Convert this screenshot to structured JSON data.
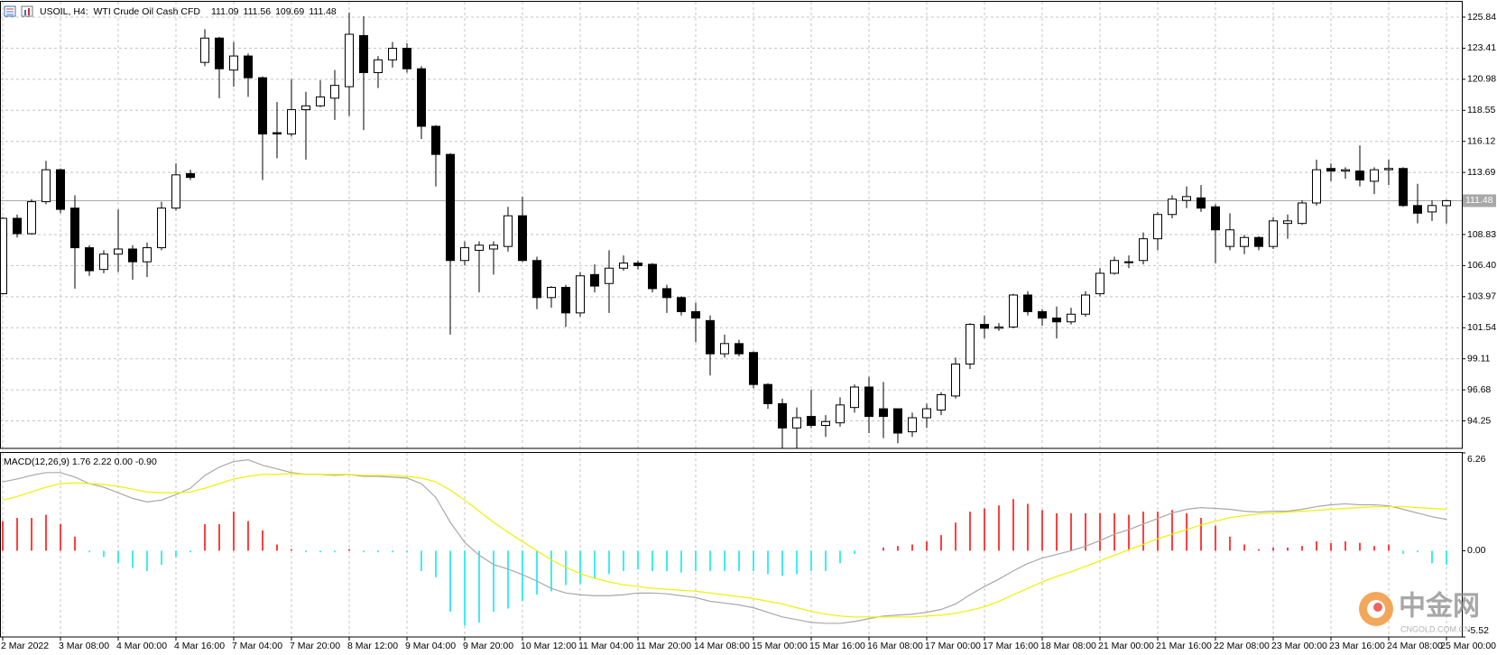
{
  "chart_data": [
    {
      "type": "candlestick",
      "title": "USOIL, H4:  WTI Crude Oil Cash CFD",
      "categories": [
        "2 Mar 2022",
        null,
        null,
        null,
        "3 Mar 08:00",
        null,
        null,
        null,
        "4 Mar 00:00",
        null,
        null,
        null,
        "4 Mar 16:00",
        null,
        null,
        null,
        "7 Mar 04:00",
        null,
        null,
        null,
        "7 Mar 20:00",
        null,
        null,
        null,
        "8 Mar 12:00",
        null,
        null,
        null,
        "9 Mar 04:00",
        null,
        null,
        null,
        "9 Mar 20:00",
        null,
        null,
        null,
        "10 Mar 12:00",
        null,
        null,
        null,
        "11 Mar 04:00",
        null,
        null,
        null,
        "11 Mar 20:00",
        null,
        null,
        null,
        "14 Mar 08:00",
        null,
        null,
        null,
        "15 Mar 00:00",
        null,
        null,
        null,
        "15 Mar 16:00",
        null,
        null,
        null,
        "16 Mar 08:00",
        null,
        null,
        null,
        "17 Mar 00:00",
        null,
        null,
        null,
        "17 Mar 16:00",
        null,
        null,
        null,
        "18 Mar 08:00",
        null,
        null,
        null,
        "21 Mar 00:00",
        null,
        null,
        null,
        "21 Mar 16:00",
        null,
        null,
        null,
        "22 Mar 08:00",
        null,
        null,
        null,
        "23 Mar 00:00",
        null,
        null,
        null,
        "23 Mar 16:00",
        null,
        null,
        null,
        "24 Mar 08:00",
        null,
        null,
        null,
        "25 Mar 00:00"
      ],
      "open": [
        104.2,
        110.1,
        108.9,
        111.4,
        113.9,
        110.9,
        107.8,
        106.1,
        107.3,
        107.7,
        106.7,
        107.8,
        110.9,
        113.6,
        122.3,
        124.2,
        121.7,
        122.8,
        121.1,
        116.8,
        116.7,
        118.6,
        118.9,
        119.5,
        120.4,
        124.4,
        121.5,
        122.5,
        123.4,
        121.8,
        117.3,
        115.1,
        106.8,
        107.6,
        107.7,
        107.9,
        110.3,
        106.8,
        103.9,
        104.7,
        102.7,
        105.7,
        105.0,
        106.2,
        106.6,
        106.5,
        104.6,
        103.9,
        102.8,
        102.1,
        99.5,
        100.3,
        99.6,
        97.1,
        95.6,
        93.7,
        94.6,
        93.9,
        94.1,
        95.3,
        96.9,
        95.2,
        95.2,
        93.4,
        94.5,
        95.1,
        96.2,
        98.7,
        101.8,
        101.5,
        101.6,
        104.1,
        102.8,
        102.3,
        102.0,
        102.6,
        104.2,
        105.8,
        106.7,
        106.8,
        108.5,
        110.4,
        111.5,
        111.7,
        111.0,
        107.9,
        107.9,
        108.6,
        107.9,
        109.7,
        109.7,
        111.3,
        114.0,
        113.8,
        113.8,
        113.0,
        113.9,
        114.0,
        111.1,
        110.6,
        111.09
      ],
      "high": [
        110.2,
        110.4,
        111.6,
        114.6,
        114.0,
        111.9,
        108.0,
        107.6,
        110.8,
        108.0,
        108.2,
        111.4,
        114.4,
        113.9,
        124.9,
        124.3,
        123.9,
        123.0,
        121.2,
        119.2,
        121.0,
        120.0,
        120.9,
        121.7,
        126.2,
        125.9,
        122.8,
        123.9,
        123.8,
        122.0,
        117.4,
        115.2,
        108.3,
        108.3,
        108.3,
        111.0,
        111.8,
        107.1,
        104.8,
        104.9,
        105.9,
        106.5,
        107.6,
        107.2,
        106.8,
        106.6,
        104.9,
        104.0,
        103.5,
        102.5,
        101.0,
        100.6,
        99.7,
        97.2,
        96.0,
        95.3,
        96.7,
        94.7,
        96.1,
        97.1,
        97.7,
        97.3,
        95.2,
        94.9,
        95.6,
        96.5,
        99.2,
        101.9,
        102.5,
        101.9,
        104.2,
        104.4,
        103.0,
        103.2,
        103.1,
        104.4,
        106.2,
        107.1,
        107.2,
        109.0,
        110.6,
        111.9,
        112.6,
        112.7,
        111.2,
        110.5,
        108.8,
        108.7,
        110.2,
        110.4,
        111.5,
        114.7,
        114.4,
        114.1,
        115.8,
        114.1,
        114.7,
        114.1,
        112.8,
        111.5,
        111.56
      ],
      "low": [
        104.2,
        108.6,
        108.8,
        111.2,
        110.5,
        104.6,
        105.6,
        105.8,
        105.9,
        105.3,
        105.5,
        107.6,
        110.7,
        113.1,
        122.0,
        119.5,
        120.4,
        119.6,
        113.1,
        114.8,
        116.5,
        114.7,
        118.8,
        117.8,
        118.1,
        117.0,
        120.3,
        121.9,
        121.5,
        116.3,
        112.6,
        101.0,
        106.4,
        104.3,
        105.7,
        107.5,
        106.7,
        103.0,
        103.1,
        101.6,
        102.4,
        104.3,
        102.7,
        106.0,
        106.1,
        104.3,
        102.7,
        102.5,
        100.4,
        97.8,
        99.2,
        99.3,
        96.8,
        95.2,
        92.1,
        92.1,
        93.7,
        93.0,
        93.8,
        94.9,
        93.3,
        92.9,
        92.5,
        93.0,
        93.7,
        94.7,
        96.0,
        98.3,
        100.7,
        101.3,
        101.5,
        102.5,
        101.7,
        100.7,
        101.8,
        102.4,
        104.0,
        105.7,
        106.2,
        106.5,
        107.6,
        110.1,
        110.9,
        110.6,
        106.6,
        107.6,
        107.3,
        107.6,
        107.7,
        108.5,
        109.6,
        111.1,
        113.0,
        113.2,
        112.6,
        112.0,
        112.7,
        111.0,
        109.7,
        109.9,
        109.69
      ],
      "close": [
        110.1,
        108.9,
        111.4,
        113.9,
        110.8,
        107.8,
        106.0,
        107.3,
        107.7,
        106.7,
        107.8,
        110.9,
        113.5,
        113.3,
        124.2,
        121.8,
        122.8,
        121.1,
        116.7,
        116.7,
        118.6,
        118.9,
        119.6,
        120.5,
        124.5,
        121.5,
        122.5,
        123.4,
        121.8,
        117.3,
        115.1,
        106.8,
        107.8,
        108.0,
        108.0,
        110.3,
        106.8,
        103.9,
        104.7,
        102.7,
        105.6,
        104.8,
        106.2,
        106.6,
        106.4,
        104.6,
        103.9,
        102.8,
        102.3,
        99.5,
        100.3,
        99.5,
        97.1,
        95.6,
        93.7,
        94.5,
        93.9,
        94.2,
        95.5,
        96.9,
        94.6,
        94.6,
        93.3,
        94.5,
        95.2,
        96.3,
        98.7,
        101.8,
        101.5,
        101.6,
        104.1,
        102.8,
        102.3,
        102.0,
        102.6,
        104.1,
        105.8,
        106.8,
        106.7,
        108.5,
        110.4,
        111.6,
        111.8,
        110.9,
        109.2,
        109.2,
        108.6,
        107.9,
        109.9,
        109.9,
        111.3,
        113.9,
        113.8,
        113.9,
        113.1,
        113.9,
        114.0,
        111.1,
        110.5,
        111.1,
        111.48
      ],
      "up_color": "#ffffff",
      "down_color": "#000000",
      "outline_color": "#000000",
      "last_price": 111.48,
      "last_price_color": "#a8a8a8",
      "ylim": [
        92.1,
        127.04
      ],
      "yticks": [
        125.84,
        123.41,
        120.98,
        118.55,
        116.12,
        113.69,
        108.83,
        {
          "value": 106.4,
          "label": "106.40"
        },
        103.97,
        101.54,
        99.11,
        96.68,
        94.25
      ],
      "grid": true
    },
    {
      "type": "macd",
      "title": "MACD(12,26,9) 1.76 2.22 0.00 -0.90",
      "histogram": {
        "up_color": "#ff0000",
        "down_color": "#00e5ee",
        "values": [
          1.9,
          2.1,
          2.1,
          2.3,
          1.7,
          0.9,
          -0.1,
          -0.4,
          -0.8,
          -1.1,
          -1.3,
          -0.9,
          -0.4,
          -0.1,
          1.7,
          1.7,
          2.5,
          1.9,
          1.3,
          0.4,
          0.1,
          -0.1,
          -0.1,
          -0.1,
          0.1,
          -0.1,
          -0.1,
          -0.1,
          -0.1,
          -1.3,
          -1.7,
          -3.9,
          -4.8,
          -4.6,
          -3.9,
          -3.7,
          -3.2,
          -2.8,
          -2.6,
          -2.2,
          -2.1,
          -1.8,
          -1.5,
          -1.3,
          -1.2,
          -1.3,
          -1.3,
          -1.4,
          -1.3,
          -1.3,
          -1.3,
          -1.3,
          -1.3,
          -1.5,
          -1.6,
          -1.5,
          -1.3,
          -1.3,
          -0.8,
          -0.2,
          0,
          0.2,
          0.3,
          0.4,
          0.6,
          1.0,
          1.8,
          2.5,
          2.7,
          2.9,
          3.3,
          3.0,
          2.6,
          2.4,
          2.4,
          2.4,
          2.4,
          2.4,
          2.3,
          2.5,
          2.5,
          2.6,
          2.4,
          2.1,
          1.6,
          0.9,
          0.4,
          0.1,
          0.2,
          0.2,
          0.3,
          0.6,
          0.5,
          0.6,
          0.5,
          0.3,
          0.4,
          -0.2,
          -0.1,
          -0.8,
          -0.9
        ]
      },
      "series": [
        {
          "color": "#a8a8a8",
          "values": [
            4.41,
            4.59,
            4.82,
            5.0,
            5.0,
            4.71,
            4.29,
            4.06,
            3.71,
            3.35,
            3.12,
            3.24,
            3.59,
            4.0,
            4.82,
            5.35,
            5.71,
            5.82,
            5.47,
            5.24,
            5.0,
            4.88,
            4.88,
            4.82,
            4.88,
            4.76,
            4.76,
            4.71,
            4.65,
            4.29,
            3.41,
            1.82,
            0.53,
            -0.29,
            -0.88,
            -1.18,
            -1.53,
            -1.94,
            -2.41,
            -2.71,
            -2.82,
            -2.88,
            -2.88,
            -2.82,
            -2.71,
            -2.71,
            -2.76,
            -2.88,
            -3.0,
            -3.24,
            -3.35,
            -3.47,
            -3.65,
            -3.94,
            -4.24,
            -4.41,
            -4.59,
            -4.65,
            -4.65,
            -4.53,
            -4.35,
            -4.18,
            -4.12,
            -4.06,
            -3.94,
            -3.76,
            -3.41,
            -2.82,
            -2.29,
            -1.82,
            -1.29,
            -0.82,
            -0.47,
            -0.24,
            0,
            0.29,
            0.65,
            1.06,
            1.35,
            1.71,
            2.06,
            2.41,
            2.65,
            2.76,
            2.71,
            2.65,
            2.53,
            2.47,
            2.53,
            2.53,
            2.65,
            2.82,
            2.94,
            3.0,
            2.94,
            2.94,
            2.88,
            2.65,
            2.41,
            2.18,
            2.0
          ]
        },
        {
          "color": "#f0f000",
          "values": [
            3.24,
            3.47,
            3.76,
            4.06,
            4.29,
            4.35,
            4.29,
            4.24,
            4.12,
            3.94,
            3.76,
            3.71,
            3.71,
            3.76,
            4.0,
            4.29,
            4.59,
            4.76,
            4.88,
            4.88,
            4.94,
            4.88,
            4.88,
            4.88,
            4.88,
            4.82,
            4.82,
            4.82,
            4.76,
            4.65,
            4.41,
            3.88,
            3.24,
            2.53,
            1.82,
            1.18,
            0.59,
            0,
            -0.59,
            -1.06,
            -1.47,
            -1.76,
            -2.0,
            -2.18,
            -2.29,
            -2.41,
            -2.47,
            -2.53,
            -2.59,
            -2.71,
            -2.82,
            -2.94,
            -3.06,
            -3.24,
            -3.41,
            -3.65,
            -3.88,
            -4.06,
            -4.18,
            -4.24,
            -4.24,
            -4.24,
            -4.24,
            -4.24,
            -4.18,
            -4.12,
            -4.0,
            -3.82,
            -3.59,
            -3.24,
            -2.82,
            -2.41,
            -2.0,
            -1.65,
            -1.35,
            -1.0,
            -0.65,
            -0.29,
            0.06,
            0.41,
            0.76,
            1.06,
            1.35,
            1.65,
            1.88,
            2.12,
            2.24,
            2.35,
            2.41,
            2.47,
            2.53,
            2.59,
            2.65,
            2.71,
            2.76,
            2.82,
            2.82,
            2.82,
            2.76,
            2.71,
            2.66
          ]
        }
      ],
      "ylim": [
        -5.52,
        6.26
      ],
      "yticks": [
        6.26,
        {
          "value": 0,
          "label": "0.00"
        },
        -5.52
      ],
      "grid": true
    }
  ],
  "watermark": {
    "name": "中金网",
    "url": "CNGOLD.COM.CN"
  }
}
